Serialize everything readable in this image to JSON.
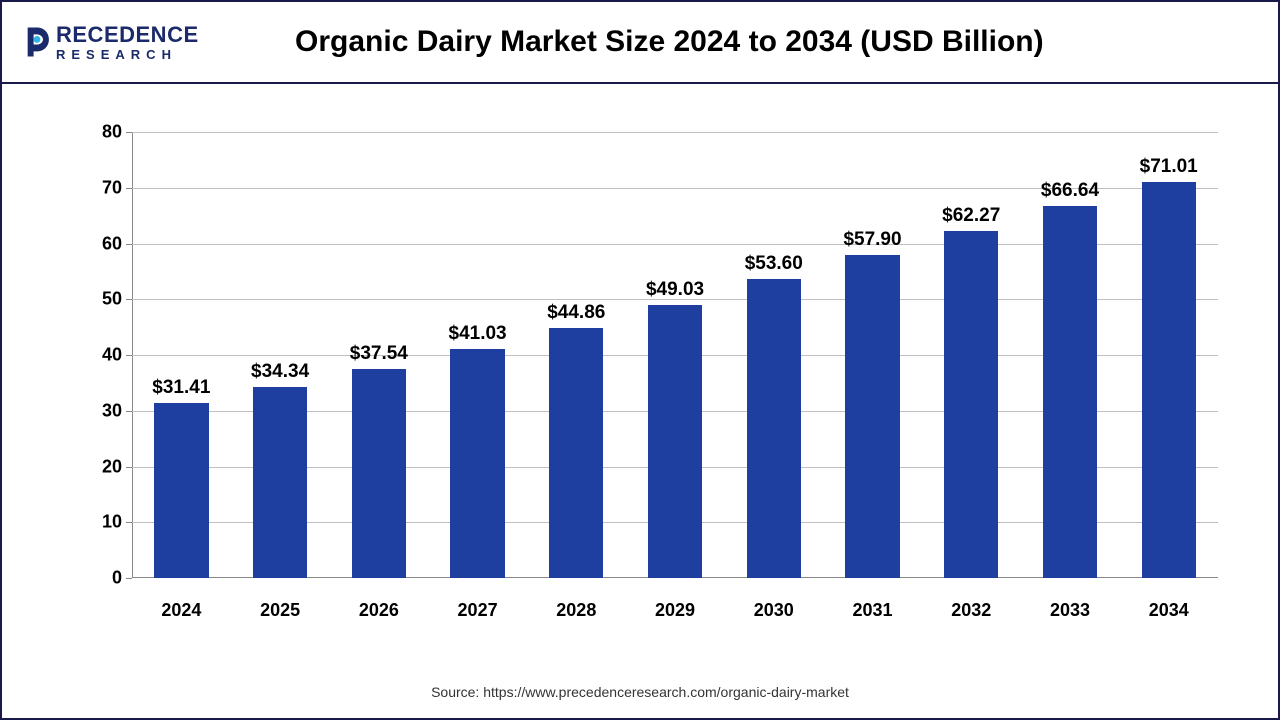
{
  "logo": {
    "top": "RECEDENCE",
    "bottom": "RESEARCH",
    "primary_color": "#1b2a6b",
    "accent_color": "#2fb4e8"
  },
  "chart": {
    "type": "bar",
    "title": "Organic Dairy Market Size 2024 to 2034 (USD Billion)",
    "title_fontsize": 30,
    "title_color": "#000000",
    "categories": [
      "2024",
      "2025",
      "2026",
      "2027",
      "2028",
      "2029",
      "2030",
      "2031",
      "2032",
      "2033",
      "2034"
    ],
    "values": [
      31.41,
      34.34,
      37.54,
      41.03,
      44.86,
      49.03,
      53.6,
      57.9,
      62.27,
      66.64,
      71.01
    ],
    "value_labels": [
      "$31.41",
      "$34.34",
      "$37.54",
      "$41.03",
      "$44.86",
      "$49.03",
      "$53.60",
      "$57.90",
      "$62.27",
      "$66.64",
      "$71.01"
    ],
    "bar_color": "#1f3fa0",
    "ylim": [
      0,
      80
    ],
    "ytick_step": 10,
    "yticks": [
      0,
      10,
      20,
      30,
      40,
      50,
      60,
      70,
      80
    ],
    "grid_color": "#bfbfbf",
    "axis_color": "#888888",
    "background_color": "#ffffff",
    "label_fontsize": 18,
    "value_label_fontsize": 19,
    "bar_width_ratio": 0.55,
    "border_color": "#1a1a4a"
  },
  "source": "Source: https://www.precedenceresearch.com/organic-dairy-market"
}
